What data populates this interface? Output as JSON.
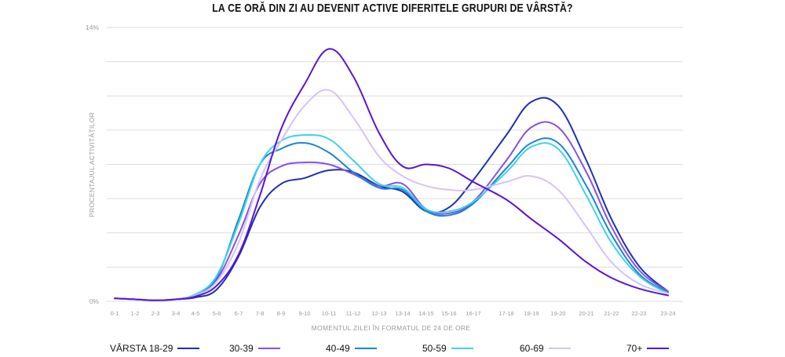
{
  "chart_data": {
    "type": "line",
    "title": "LA CE ORĂ DIN ZI AU DEVENIT ACTIVE DIFERITELE GRUPURI DE VÂRSTĂ?",
    "xlabel": "MOMENTUL ZILEI ÎN FORMATUL DE 24 DE ORE",
    "ylabel": "PROCENTAJUL ACTIVITĂȚILOR",
    "ylim": [
      0,
      14
    ],
    "yticks": [
      0,
      1.75,
      3.5,
      5.25,
      7,
      8.75,
      10.5,
      12.25,
      14
    ],
    "ytick_labels": [
      {
        "value": 14,
        "label": "14%"
      },
      {
        "value": 0,
        "label": "0%"
      }
    ],
    "grid": true,
    "legend_position": "bottom",
    "categories": [
      "0-1",
      "1-2",
      "2-3",
      "3-4",
      "4-5",
      "5-6",
      "6-7",
      "7-8",
      "8-9",
      "9-10",
      "10-11",
      "11-12",
      "12-13",
      "13-14",
      "14-15",
      "15-16",
      "16-17",
      "17-18",
      "18-19",
      "19-20",
      "20-21",
      "21-22",
      "22-23",
      "23-24"
    ],
    "series": [
      {
        "name": "VÂRSTA 18-29",
        "legend_label": "VÂRSTA 18-29",
        "color": "#1f2fb3",
        "values": [
          0.15,
          0.1,
          0.05,
          0.1,
          0.2,
          0.6,
          2.3,
          4.8,
          6.0,
          6.3,
          6.7,
          6.6,
          5.9,
          5.6,
          4.6,
          4.8,
          6.2,
          8.5,
          10.2,
          10.0,
          7.2,
          4.2,
          1.8,
          0.5
        ]
      },
      {
        "name": "30-39",
        "legend_label": "30-39",
        "color": "#8a50e0",
        "values": [
          0.15,
          0.1,
          0.05,
          0.1,
          0.3,
          1.1,
          3.4,
          6.0,
          6.9,
          7.1,
          7.0,
          6.5,
          5.9,
          6.0,
          4.7,
          4.5,
          5.1,
          7.2,
          8.9,
          8.9,
          6.6,
          3.8,
          1.6,
          0.5
        ]
      },
      {
        "name": "40-49",
        "legend_label": "40-49",
        "color": "#1b84d4",
        "values": [
          0.15,
          0.1,
          0.05,
          0.1,
          0.35,
          1.2,
          4.2,
          7.0,
          7.8,
          8.1,
          7.6,
          6.6,
          5.8,
          5.7,
          4.6,
          4.4,
          5.0,
          6.8,
          8.1,
          8.1,
          5.9,
          3.4,
          1.4,
          0.45
        ]
      },
      {
        "name": "50-59",
        "legend_label": "50-59",
        "color": "#3dd3ea",
        "values": [
          0.15,
          0.1,
          0.05,
          0.1,
          0.35,
          1.3,
          4.0,
          7.0,
          8.2,
          8.5,
          8.3,
          7.2,
          6.0,
          5.8,
          4.7,
          4.6,
          5.1,
          6.6,
          7.9,
          7.8,
          5.4,
          3.0,
          1.3,
          0.4
        ]
      },
      {
        "name": "60-69",
        "legend_label": "60-69",
        "color": "#d6c3f3",
        "values": [
          0.15,
          0.1,
          0.05,
          0.1,
          0.3,
          1.0,
          3.0,
          6.2,
          8.2,
          10.0,
          10.8,
          9.4,
          7.4,
          6.4,
          5.9,
          5.7,
          5.7,
          6.1,
          6.4,
          5.7,
          3.8,
          2.0,
          0.9,
          0.4
        ]
      },
      {
        "name": "70+",
        "legend_label": "70+",
        "color": "#5a14d6",
        "values": [
          0.15,
          0.1,
          0.05,
          0.1,
          0.25,
          0.8,
          2.4,
          5.4,
          8.8,
          11.1,
          12.9,
          11.5,
          8.6,
          6.9,
          7.0,
          6.8,
          6.1,
          5.2,
          4.2,
          3.2,
          2.0,
          1.2,
          0.65,
          0.3
        ]
      }
    ]
  }
}
